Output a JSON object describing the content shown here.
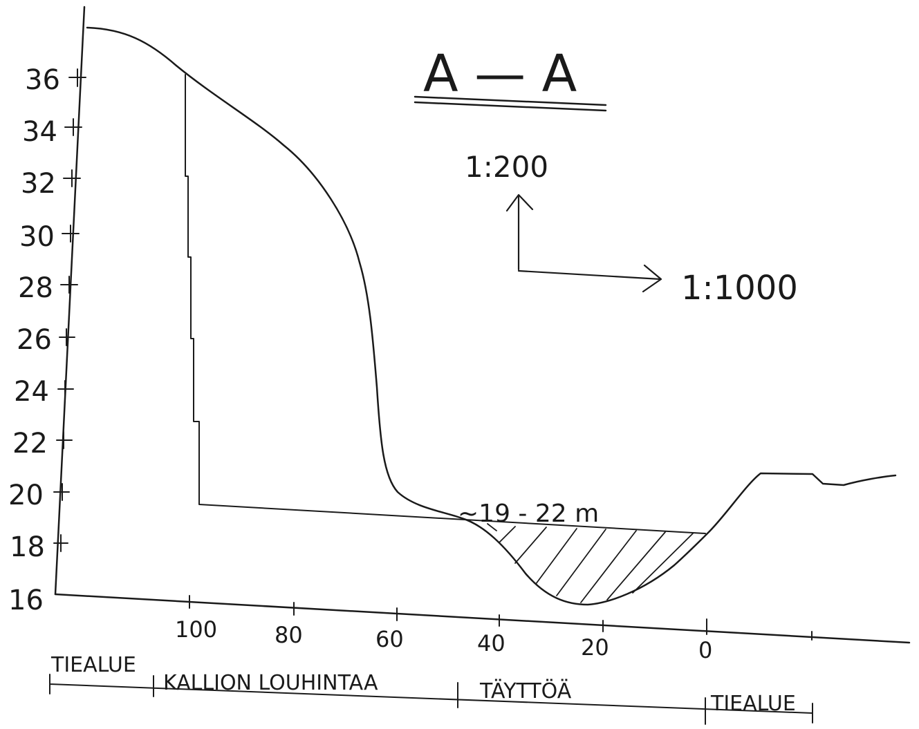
{
  "title": "A — A",
  "vertical_scale": "1:200",
  "horizontal_scale": "1:1000",
  "depth_annotation": "~19 - 22 m",
  "y_ticks": [
    "36",
    "34",
    "32",
    "30",
    "28",
    "26",
    "24",
    "22",
    "20",
    "18",
    "16"
  ],
  "x_ticks": [
    "100",
    "80",
    "60",
    "40",
    "20",
    "0"
  ],
  "zones": [
    "TIEALUE",
    "KALLION LOUHINTAA",
    "TÄYTTÖÄ",
    "TIEALUE"
  ],
  "colors": {
    "ink": "#1a1a1a",
    "paper": "#ffffff"
  },
  "chart_data": {
    "type": "line",
    "title": "A — A",
    "xlabel": "",
    "ylabel": "",
    "x_ticks": [
      100,
      80,
      60,
      40,
      20,
      0
    ],
    "y_ticks": [
      36,
      34,
      32,
      30,
      28,
      26,
      24,
      22,
      20,
      18,
      16
    ],
    "ylim": [
      16,
      37
    ],
    "grid": false,
    "series": [
      {
        "x": [
          120,
          110,
          100,
          95,
          85,
          80,
          75,
          70,
          66,
          64,
          62.5,
          62,
          61,
          60,
          56,
          50,
          46,
          44,
          40,
          34,
          28,
          22,
          18,
          14,
          8,
          2,
          -2,
          -6,
          -10,
          -14,
          -20,
          -24,
          -28,
          -38
        ],
        "y": [
          37.8,
          37.2,
          36.0,
          35.0,
          33.6,
          32.7,
          31.0,
          28.5,
          25.5,
          22.0,
          20.2,
          20.0,
          19.9,
          19.8,
          19.4,
          19.0,
          19.0,
          18.8,
          18.3,
          17.0,
          16.3,
          16.1,
          16.3,
          16.8,
          17.3,
          18.5,
          19.1,
          20.0,
          21.0,
          21.0,
          21.0,
          20.7,
          20.8,
          21.0
        ]
      },
      {
        "x": [
          105,
          105,
          60,
          40,
          20,
          2
        ],
        "y": [
          36.0,
          19.6,
          19.3,
          19.0,
          18.7,
          18.5
        ]
      }
    ]
  }
}
